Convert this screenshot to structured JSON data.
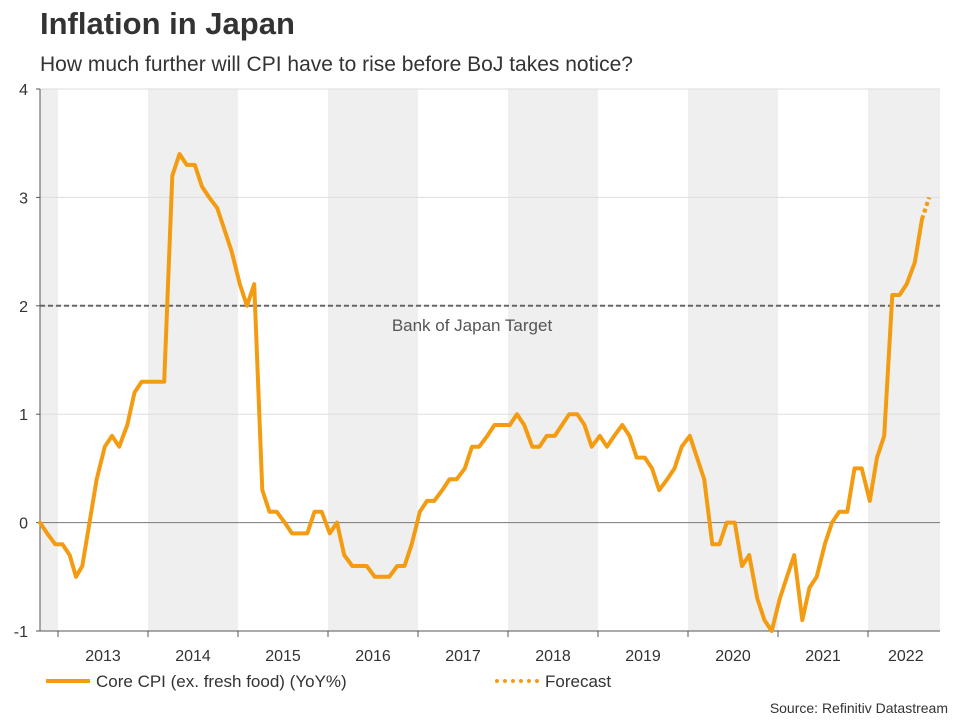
{
  "chart_data": {
    "type": "line",
    "title": "Inflation in Japan",
    "subtitle": "How much further will CPI have to rise before BoJ takes notice?",
    "xlabel": "",
    "ylabel": "",
    "ylim": [
      -1.0,
      4.0
    ],
    "yticks": [
      4,
      3,
      2,
      1,
      0,
      -1
    ],
    "ytick_labels": [
      "4",
      "3",
      "2",
      "1",
      "0",
      "-1"
    ],
    "xlim": [
      2012.8,
      2022.8
    ],
    "year_labels": [
      "2013",
      "2014",
      "2015",
      "2016",
      "2017",
      "2018",
      "2019",
      "2020",
      "2021",
      "2022"
    ],
    "target_value": 2.0,
    "target_label": "Bank of Japan Target",
    "zero_line": 0,
    "series": [
      {
        "name": "Core CPI (ex. fresh food) (YoY%)",
        "color": "#f39c12",
        "style": "solid",
        "points": [
          [
            2012.8,
            0.0
          ],
          [
            2012.88,
            -0.1
          ],
          [
            2012.97,
            -0.2
          ],
          [
            2013.05,
            -0.2
          ],
          [
            2013.13,
            -0.3
          ],
          [
            2013.2,
            -0.5
          ],
          [
            2013.27,
            -0.4
          ],
          [
            2013.35,
            0.0
          ],
          [
            2013.43,
            0.4
          ],
          [
            2013.52,
            0.7
          ],
          [
            2013.6,
            0.8
          ],
          [
            2013.68,
            0.7
          ],
          [
            2013.77,
            0.9
          ],
          [
            2013.85,
            1.2
          ],
          [
            2013.93,
            1.3
          ],
          [
            2014.02,
            1.3
          ],
          [
            2014.1,
            1.3
          ],
          [
            2014.18,
            1.3
          ],
          [
            2014.27,
            3.2
          ],
          [
            2014.35,
            3.4
          ],
          [
            2014.43,
            3.3
          ],
          [
            2014.52,
            3.3
          ],
          [
            2014.6,
            3.1
          ],
          [
            2014.68,
            3.0
          ],
          [
            2014.77,
            2.9
          ],
          [
            2014.85,
            2.7
          ],
          [
            2014.93,
            2.5
          ],
          [
            2015.02,
            2.2
          ],
          [
            2015.1,
            2.0
          ],
          [
            2015.18,
            2.2
          ],
          [
            2015.27,
            0.3
          ],
          [
            2015.35,
            0.1
          ],
          [
            2015.43,
            0.1
          ],
          [
            2015.52,
            0.0
          ],
          [
            2015.6,
            -0.1
          ],
          [
            2015.68,
            -0.1
          ],
          [
            2015.77,
            -0.1
          ],
          [
            2015.85,
            0.1
          ],
          [
            2015.93,
            0.1
          ],
          [
            2016.02,
            -0.1
          ],
          [
            2016.1,
            0.0
          ],
          [
            2016.18,
            -0.3
          ],
          [
            2016.27,
            -0.4
          ],
          [
            2016.35,
            -0.4
          ],
          [
            2016.43,
            -0.4
          ],
          [
            2016.52,
            -0.5
          ],
          [
            2016.6,
            -0.5
          ],
          [
            2016.68,
            -0.5
          ],
          [
            2016.77,
            -0.4
          ],
          [
            2016.85,
            -0.4
          ],
          [
            2016.93,
            -0.2
          ],
          [
            2017.02,
            0.1
          ],
          [
            2017.1,
            0.2
          ],
          [
            2017.18,
            0.2
          ],
          [
            2017.27,
            0.3
          ],
          [
            2017.35,
            0.4
          ],
          [
            2017.43,
            0.4
          ],
          [
            2017.52,
            0.5
          ],
          [
            2017.6,
            0.7
          ],
          [
            2017.68,
            0.7
          ],
          [
            2017.77,
            0.8
          ],
          [
            2017.85,
            0.9
          ],
          [
            2017.93,
            0.9
          ],
          [
            2018.02,
            0.9
          ],
          [
            2018.1,
            1.0
          ],
          [
            2018.18,
            0.9
          ],
          [
            2018.27,
            0.7
          ],
          [
            2018.35,
            0.7
          ],
          [
            2018.43,
            0.8
          ],
          [
            2018.52,
            0.8
          ],
          [
            2018.6,
            0.9
          ],
          [
            2018.68,
            1.0
          ],
          [
            2018.77,
            1.0
          ],
          [
            2018.85,
            0.9
          ],
          [
            2018.93,
            0.7
          ],
          [
            2019.02,
            0.8
          ],
          [
            2019.1,
            0.7
          ],
          [
            2019.18,
            0.8
          ],
          [
            2019.27,
            0.9
          ],
          [
            2019.35,
            0.8
          ],
          [
            2019.43,
            0.6
          ],
          [
            2019.52,
            0.6
          ],
          [
            2019.6,
            0.5
          ],
          [
            2019.68,
            0.3
          ],
          [
            2019.77,
            0.4
          ],
          [
            2019.85,
            0.5
          ],
          [
            2019.93,
            0.7
          ],
          [
            2020.02,
            0.8
          ],
          [
            2020.1,
            0.6
          ],
          [
            2020.18,
            0.4
          ],
          [
            2020.27,
            -0.2
          ],
          [
            2020.35,
            -0.2
          ],
          [
            2020.43,
            0.0
          ],
          [
            2020.52,
            0.0
          ],
          [
            2020.6,
            -0.4
          ],
          [
            2020.68,
            -0.3
          ],
          [
            2020.77,
            -0.7
          ],
          [
            2020.85,
            -0.9
          ],
          [
            2020.93,
            -1.0
          ],
          [
            2021.02,
            -0.7
          ],
          [
            2021.1,
            -0.5
          ],
          [
            2021.18,
            -0.3
          ],
          [
            2021.27,
            -0.9
          ],
          [
            2021.35,
            -0.6
          ],
          [
            2021.43,
            -0.5
          ],
          [
            2021.52,
            -0.2
          ],
          [
            2021.6,
            0.0
          ],
          [
            2021.68,
            0.1
          ],
          [
            2021.77,
            0.1
          ],
          [
            2021.85,
            0.5
          ],
          [
            2021.93,
            0.5
          ],
          [
            2022.02,
            0.2
          ],
          [
            2022.1,
            0.6
          ],
          [
            2022.18,
            0.8
          ],
          [
            2022.27,
            2.1
          ],
          [
            2022.35,
            2.1
          ],
          [
            2022.43,
            2.2
          ],
          [
            2022.52,
            2.4
          ],
          [
            2022.6,
            2.8
          ]
        ]
      },
      {
        "name": "Forecast",
        "color": "#f39c12",
        "style": "dotted",
        "points": [
          [
            2022.6,
            2.8
          ],
          [
            2022.68,
            3.0
          ]
        ]
      }
    ],
    "legend": [
      "Core CPI (ex. fresh food) (YoY%)",
      "Forecast"
    ],
    "source": "Source: Refinitiv Datastream"
  }
}
